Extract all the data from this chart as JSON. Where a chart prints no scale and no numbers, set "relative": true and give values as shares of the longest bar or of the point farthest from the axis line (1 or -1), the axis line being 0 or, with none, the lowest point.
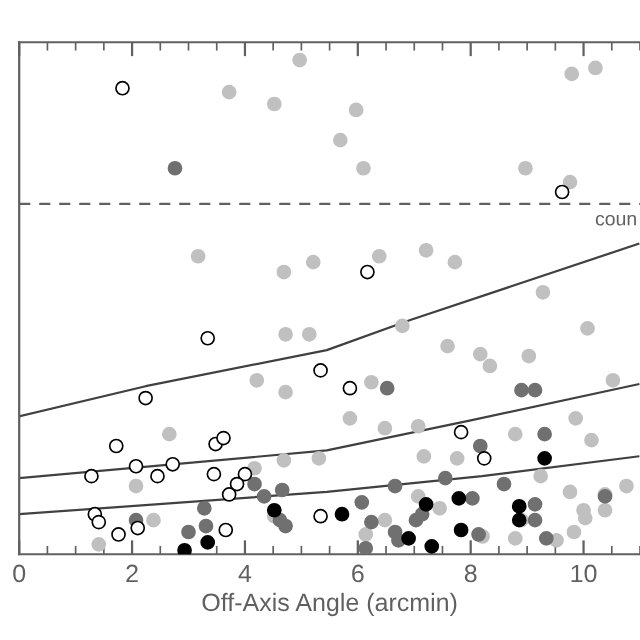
{
  "chart_data": {
    "type": "scatter",
    "relative": true,
    "xlabel": "Off-Axis Angle (arcmin)",
    "xlim": [
      0,
      11
    ],
    "xticks": [
      0,
      2,
      4,
      6,
      8,
      10
    ],
    "grid": false,
    "legend": false,
    "ref_lines": [
      {
        "axis": "y",
        "value": 0.709,
        "label": "coun",
        "color": "#606060",
        "line_style": "dashed"
      }
    ],
    "series": [
      {
        "marker": "circle",
        "color": "#ffffff",
        "x": [
          1.83,
          9.62,
          6.17,
          3.34,
          2.24,
          5.34,
          1.72,
          2.07,
          2.72,
          2.45,
          1.28,
          3.48,
          3.62,
          3.45,
          4.0,
          3.86,
          3.72,
          1.34,
          1.41,
          1.76,
          2.1,
          3.66,
          5.34,
          5.86,
          7.83,
          8.24
        ],
        "values": [
          0.943,
          0.733,
          0.571,
          0.437,
          0.316,
          0.372,
          0.219,
          0.178,
          0.182,
          0.158,
          0.158,
          0.223,
          0.235,
          0.162,
          0.162,
          0.142,
          0.121,
          0.081,
          0.065,
          0.04,
          0.053,
          0.049,
          0.077,
          0.336,
          0.247,
          0.194
        ]
      },
      {
        "marker": "circle",
        "color": "#c0c0c0",
        "x": [
          4.97,
          3.72,
          4.52,
          3.17,
          4.69,
          5.21,
          9.79,
          10.21,
          5.97,
          5.69,
          6.1,
          8.97,
          9.76,
          6.38,
          7.21,
          7.72,
          9.28,
          4.72,
          5.14,
          4.21,
          4.72,
          2.66,
          2.07,
          2.38,
          1.41,
          4.52,
          5.31,
          4.69,
          4.17,
          6.79,
          7.59,
          8.17,
          8.34,
          9.03,
          10.07,
          10.52,
          6.24,
          5.86,
          6.48,
          7.07,
          7.76,
          7.17,
          9.86,
          10.14,
          8.79,
          9.24,
          9.76,
          10.38,
          10.76,
          10.0,
          10.03,
          10.38,
          9.83,
          9.52,
          8.79,
          8.21,
          7.45,
          7.07,
          6.14,
          6.48,
          8.9
        ],
        "values": [
          1.0,
          0.935,
          0.911,
          0.603,
          0.571,
          0.591,
          0.972,
          0.984,
          0.899,
          0.838,
          0.781,
          0.781,
          0.753,
          0.603,
          0.615,
          0.591,
          0.53,
          0.445,
          0.445,
          0.352,
          0.328,
          0.243,
          0.138,
          0.069,
          0.02,
          0.077,
          0.194,
          0.19,
          0.174,
          0.462,
          0.421,
          0.405,
          0.381,
          0.401,
          0.457,
          0.352,
          0.348,
          0.275,
          0.255,
          0.259,
          0.194,
          0.198,
          0.275,
          0.231,
          0.243,
          0.158,
          0.126,
          0.121,
          0.138,
          0.089,
          0.073,
          0.089,
          0.045,
          0.028,
          0.032,
          0.036,
          0.093,
          0.117,
          0.04,
          0.069,
          0.069
        ]
      },
      {
        "marker": "circle",
        "color": "#707070",
        "x": [
          2.76,
          4.17,
          4.34,
          4.66,
          4.62,
          4.72,
          3.28,
          3.31,
          3.0,
          2.07,
          6.52,
          8.9,
          9.14,
          8.17,
          9.31,
          7.55,
          6.66,
          8.59,
          6.07,
          6.24,
          6.66,
          7.03,
          7.14,
          8.03,
          8.14,
          9.14,
          9.14,
          9.34,
          10.38,
          6.14,
          6.72
        ],
        "values": [
          0.781,
          0.142,
          0.117,
          0.13,
          0.069,
          0.057,
          0.093,
          0.057,
          0.045,
          0.069,
          0.336,
          0.332,
          0.332,
          0.219,
          0.243,
          0.154,
          0.138,
          0.142,
          0.105,
          0.065,
          0.045,
          0.069,
          0.081,
          0.113,
          0.04,
          0.101,
          0.069,
          0.032,
          0.117,
          0.012,
          0.028
        ]
      },
      {
        "marker": "circle",
        "color": "#000000",
        "x": [
          2.93,
          3.34,
          4.52,
          5.72,
          6.9,
          7.21,
          7.31,
          7.79,
          7.83,
          8.86,
          8.86,
          9.31
        ],
        "values": [
          0.008,
          0.024,
          0.089,
          0.081,
          0.032,
          0.101,
          0.016,
          0.113,
          0.049,
          0.097,
          0.069,
          0.194
        ]
      },
      {
        "type": "line",
        "color": "#404040",
        "x": [
          0,
          2.24,
          5.45,
          6.93,
          10.97
        ],
        "values": [
          0.279,
          0.34,
          0.413,
          0.474,
          0.628
        ]
      },
      {
        "type": "line",
        "color": "#404040",
        "x": [
          0,
          5.45,
          8.0,
          10.97
        ],
        "values": [
          0.154,
          0.21,
          0.271,
          0.344
        ]
      },
      {
        "type": "line",
        "color": "#404040",
        "x": [
          0,
          5.45,
          8.2,
          10.97
        ],
        "values": [
          0.081,
          0.126,
          0.158,
          0.198
        ]
      }
    ]
  }
}
